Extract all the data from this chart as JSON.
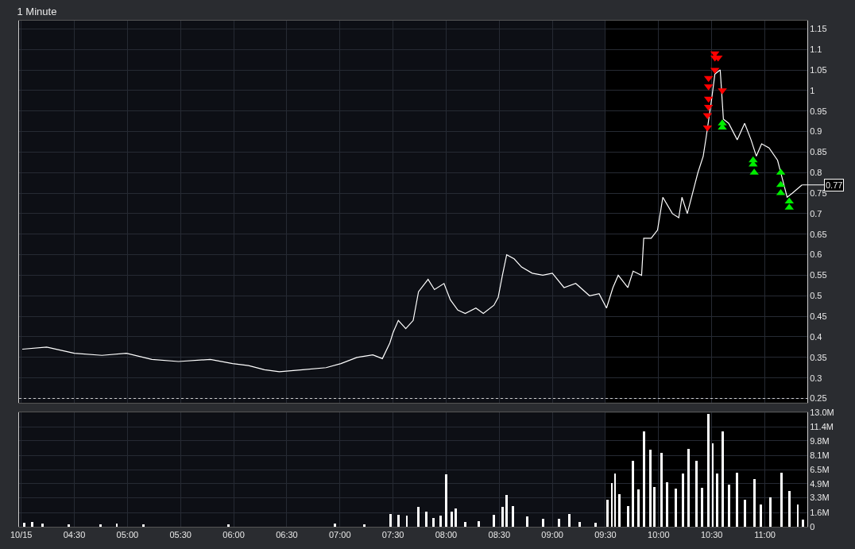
{
  "chart_data": [
    {
      "type": "line",
      "title": "1 Minute",
      "xlim": [
        3.98,
        11.4
      ],
      "ylim": [
        0.24,
        1.17
      ],
      "xticks": [
        {
          "value": 4.0,
          "label": null
        },
        {
          "value": 4.5,
          "label": null
        },
        {
          "value": 5.0,
          "label": null
        },
        {
          "value": 5.5,
          "label": null
        },
        {
          "value": 6.0,
          "label": null
        },
        {
          "value": 6.5,
          "label": null
        },
        {
          "value": 7.0,
          "label": null
        },
        {
          "value": 7.5,
          "label": null
        },
        {
          "value": 8.0,
          "label": null
        },
        {
          "value": 8.5,
          "label": null
        },
        {
          "value": 9.0,
          "label": null
        },
        {
          "value": 9.5,
          "label": null
        },
        {
          "value": 10.0,
          "label": null
        },
        {
          "value": 10.5,
          "label": null
        },
        {
          "value": 11.0,
          "label": null
        }
      ],
      "yticks": [
        0.25,
        0.3,
        0.35,
        0.4,
        0.45,
        0.5,
        0.55,
        0.6,
        0.65,
        0.7,
        0.75,
        0.8,
        0.85,
        0.9,
        0.95,
        1,
        1.05,
        1.1,
        1.15
      ],
      "tick_labels": "y",
      "grid": true,
      "legend": false,
      "series": [
        {
          "type": "line",
          "color": "#ffffff",
          "marker": "none",
          "x": [
            4.01,
            4.24,
            4.5,
            4.76,
            4.99,
            5.23,
            5.48,
            5.78,
            5.99,
            6.14,
            6.29,
            6.43,
            6.65,
            6.87,
            7.01,
            7.16,
            7.31,
            7.4,
            7.47,
            7.5,
            7.55,
            7.62,
            7.69,
            7.74,
            7.83,
            7.89,
            7.98,
            8.04,
            8.11,
            8.18,
            8.28,
            8.35,
            8.45,
            8.49,
            8.53,
            8.57,
            8.64,
            8.71,
            8.81,
            8.91,
            9.0,
            9.11,
            9.22,
            9.35,
            9.44,
            9.51,
            9.57,
            9.62,
            9.71,
            9.76,
            9.84,
            9.86,
            9.93,
            9.99,
            10.04,
            10.13,
            10.19,
            10.22,
            10.27,
            10.33,
            10.37,
            10.42,
            10.45,
            10.5,
            10.53,
            10.58,
            10.61,
            10.66,
            10.74,
            10.81,
            10.87,
            10.92,
            10.97,
            11.04,
            11.12,
            11.16,
            11.21,
            11.26,
            11.35
          ],
          "values": [
            0.37,
            0.375,
            0.36,
            0.355,
            0.36,
            0.345,
            0.34,
            0.345,
            0.335,
            0.33,
            0.32,
            0.315,
            0.32,
            0.325,
            0.335,
            0.35,
            0.356,
            0.347,
            0.385,
            0.41,
            0.44,
            0.42,
            0.44,
            0.51,
            0.54,
            0.515,
            0.53,
            0.49,
            0.465,
            0.457,
            0.47,
            0.457,
            0.477,
            0.496,
            0.55,
            0.6,
            0.59,
            0.57,
            0.555,
            0.55,
            0.555,
            0.52,
            0.53,
            0.5,
            0.505,
            0.47,
            0.52,
            0.55,
            0.52,
            0.56,
            0.55,
            0.64,
            0.64,
            0.66,
            0.74,
            0.7,
            0.69,
            0.74,
            0.7,
            0.76,
            0.8,
            0.84,
            0.89,
            0.98,
            1.04,
            1.05,
            0.93,
            0.92,
            0.88,
            0.92,
            0.88,
            0.84,
            0.87,
            0.86,
            0.83,
            0.79,
            0.74,
            0.75,
            0.77
          ]
        },
        {
          "type": "scatter",
          "color": "#ff0000",
          "marker": "triangle-down",
          "x": [
            10.46,
            10.46,
            10.47,
            10.47,
            10.47,
            10.47,
            10.53,
            10.53,
            10.53,
            10.56,
            10.6
          ],
          "values": [
            0.91,
            0.94,
            0.96,
            0.98,
            1.01,
            1.03,
            1.05,
            1.08,
            1.09,
            1.08,
            1.0
          ]
        },
        {
          "type": "scatter",
          "color": "#00ee00",
          "marker": "triangle-up",
          "x": [
            10.6,
            10.6,
            10.89,
            10.89,
            10.9,
            11.15,
            11.15,
            11.15,
            11.23,
            11.23
          ],
          "values": [
            0.92,
            0.91,
            0.83,
            0.82,
            0.8,
            0.8,
            0.77,
            0.75,
            0.73,
            0.715
          ]
        }
      ],
      "ref_lines": [
        {
          "axis": "y",
          "value": 0.25,
          "color": "#cccccc",
          "line_style": "dotted"
        }
      ],
      "bands": [
        {
          "axis": "x",
          "from": 3.98,
          "to": 9.5,
          "color": "#0d0f15"
        }
      ],
      "annotations": [
        {
          "text": "0.77",
          "x": 11.35,
          "y": 0.77
        }
      ]
    },
    {
      "type": "bar",
      "color": "#ffffff",
      "xlim": [
        3.98,
        11.4
      ],
      "ylim": [
        0,
        13
      ],
      "xticks": [
        {
          "value": 4.0,
          "label": "10/15"
        },
        {
          "value": 4.5,
          "label": "04:30"
        },
        {
          "value": 5.0,
          "label": "05:00"
        },
        {
          "value": 5.5,
          "label": "05:30"
        },
        {
          "value": 6.0,
          "label": "06:00"
        },
        {
          "value": 6.5,
          "label": "06:30"
        },
        {
          "value": 7.0,
          "label": "07:00"
        },
        {
          "value": 7.5,
          "label": "07:30"
        },
        {
          "value": 8.0,
          "label": "08:00"
        },
        {
          "value": 8.5,
          "label": "08:30"
        },
        {
          "value": 9.0,
          "label": "09:00"
        },
        {
          "value": 9.5,
          "label": "09:30"
        },
        {
          "value": 10.0,
          "label": "10:00"
        },
        {
          "value": 10.5,
          "label": "10:30"
        },
        {
          "value": 11.0,
          "label": "11:00"
        }
      ],
      "yticks": [
        0,
        {
          "value": 1.6,
          "label": "1.6M"
        },
        {
          "value": 3.3,
          "label": "3.3M"
        },
        {
          "value": 4.9,
          "label": "4.9M"
        },
        {
          "value": 6.5,
          "label": "6.5M"
        },
        {
          "value": 8.1,
          "label": "8.1M"
        },
        {
          "value": 9.8,
          "label": "9.8M"
        },
        {
          "value": 11.4,
          "label": "11.4M"
        },
        {
          "value": 13.0,
          "label": "13.0M"
        }
      ],
      "grid": true,
      "legend": false,
      "bands": [
        {
          "axis": "x",
          "from": 3.98,
          "to": 9.5,
          "color": "#0d0f15"
        }
      ],
      "x": [
        4.03,
        4.1,
        4.2,
        4.45,
        4.75,
        4.9,
        5.15,
        5.95,
        6.95,
        7.23,
        7.48,
        7.55,
        7.63,
        7.74,
        7.81,
        7.88,
        7.95,
        8.0,
        8.05,
        8.09,
        8.18,
        8.31,
        8.45,
        8.53,
        8.57,
        8.63,
        8.76,
        8.91,
        9.06,
        9.16,
        9.26,
        9.41,
        9.52,
        9.56,
        9.59,
        9.63,
        9.71,
        9.76,
        9.81,
        9.86,
        9.92,
        9.96,
        10.03,
        10.08,
        10.16,
        10.23,
        10.28,
        10.36,
        10.41,
        10.47,
        10.51,
        10.55,
        10.6,
        10.66,
        10.74,
        10.81,
        10.9,
        10.96,
        11.05,
        11.16,
        11.23,
        11.31,
        11.36
      ],
      "values": [
        0.4,
        0.5,
        0.3,
        0.2,
        0.2,
        0.3,
        0.2,
        0.2,
        0.3,
        0.2,
        1.4,
        1.3,
        1.2,
        2.2,
        1.7,
        1.0,
        1.2,
        5.9,
        1.7,
        2.0,
        0.5,
        0.6,
        1.3,
        2.2,
        3.6,
        2.3,
        1.1,
        0.9,
        0.9,
        1.4,
        0.5,
        0.4,
        3.0,
        4.9,
        6.0,
        3.7,
        2.3,
        7.5,
        4.2,
        10.8,
        8.7,
        4.5,
        8.4,
        5.0,
        4.3,
        6.0,
        8.8,
        7.5,
        4.4,
        12.8,
        9.5,
        6.0,
        10.8,
        4.8,
        6.1,
        3.0,
        5.4,
        2.5,
        3.3,
        6.1,
        4.0,
        2.5,
        0.8
      ]
    }
  ]
}
